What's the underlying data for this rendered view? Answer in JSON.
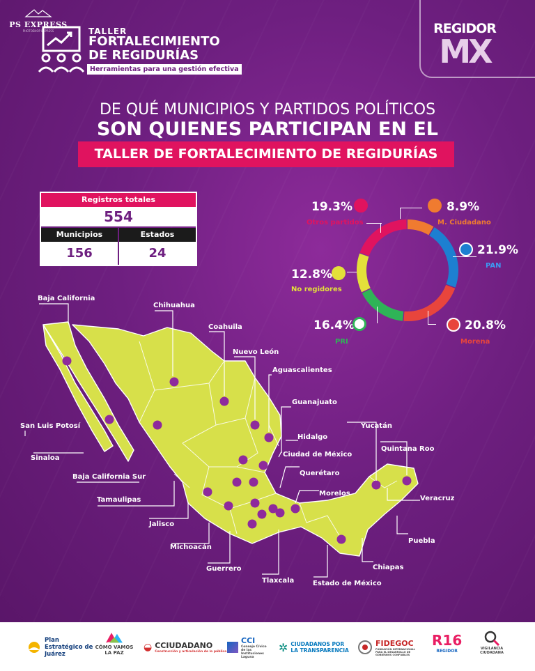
{
  "watermark": {
    "text": "PS EXPRESS",
    "sub": "PHOTOSHOP EXPRESS"
  },
  "header": {
    "kicker": "TALLER",
    "title_line1": "FORTALECIMIENTO",
    "title_line2": "DE REGIDURÍAS",
    "tagline": "Herramientas para una gestión efectiva"
  },
  "brand": {
    "top": "REGIDOR",
    "bottom": "MX"
  },
  "question": {
    "line1": "DE QUÉ MUNICIPIOS Y PARTIDOS POLÍTICOS",
    "line2": "SON QUIENES PARTICIPAN EN EL",
    "line3": "TALLER DE FORTALECIMIENTO DE REGIDURÍAS"
  },
  "stats": {
    "total_label": "Registros totales",
    "total_value": "554",
    "municipios_label": "Municipios",
    "municipios_value": "156",
    "estados_label": "Estados",
    "estados_value": "24"
  },
  "parties": [
    {
      "pct": "19.3%",
      "label": "Otros partidos",
      "value": 19.3,
      "color": "#e0135f"
    },
    {
      "pct": "8.9%",
      "label": "M. Ciudadano",
      "value": 8.9,
      "color": "#f07b30"
    },
    {
      "pct": "21.9%",
      "label": "PAN",
      "value": 21.9,
      "color": "#1d7fd1"
    },
    {
      "pct": "20.8%",
      "label": "Morena",
      "value": 20.8,
      "color": "#e8453c"
    },
    {
      "pct": "16.4%",
      "label": "PRI",
      "value": 16.4,
      "color": "#2fb457"
    },
    {
      "pct": "12.8%",
      "label": "No regidores",
      "value": 12.8,
      "color": "#e3e03a"
    }
  ],
  "party_icons": {
    "mc": "eagle-icon",
    "pan": "pan-logo-icon",
    "morena": "morena-logo-icon",
    "pri": "pri-logo-icon"
  },
  "states": {
    "baja_california": "Baja California",
    "chihuahua": "Chihuahua",
    "coahuila": "Coahuila",
    "nuevo_leon": "Nuevo León",
    "aguascalientes": "Aguascalientes",
    "guanajuato": "Guanajuato",
    "san_luis_potosi": "San Luis Potosí",
    "yucatan": "Yucatán",
    "hidalgo": "Hidalgo",
    "quintana_roo": "Quintana Roo",
    "sinaloa": "Sinaloa",
    "ciudad_de_mexico": "Ciudad de México",
    "baja_california_sur": "Baja California Sur",
    "queretaro": "Querétaro",
    "tamaulipas": "Tamaulipas",
    "morelos": "Morelos",
    "veracruz": "Veracruz",
    "jalisco": "Jalisco",
    "puebla": "Puebla",
    "michoacan": "Michoacán",
    "guerrero": "Guerrero",
    "chiapas": "Chiapas",
    "tlaxcala": "Tlaxcala",
    "estado_de_mexico": "Estado de México"
  },
  "footer": {
    "plan_juarez": "Plan Estratégico de Juárez",
    "como_vamos": "CÓMO VAMOS LA PAZ",
    "cciudadano": "CCIUDADANO",
    "cciudadano_sub": "Construcción y articulación de lo público",
    "cci": "CCI",
    "cci_sub": "Consejo Cívico de las Instituciones Laguna",
    "transparencia": "CIUDADANOS POR LA TRANSPARENCIA",
    "fidegoc": "FIDEGOC",
    "fidegoc_sub": "FUNDACIÓN INTERNACIONAL PARA EL DESARROLLO DE GOBIERNOS CONFIABLES",
    "r16": "R16",
    "r16_sub": "REGIDOR",
    "vigilancia": "VIGILANCIA CIUDADANA"
  },
  "colors": {
    "bg": "#6e1f80",
    "accent": "#e0135f",
    "map": "#d7e04a",
    "dot": "#8e2a9c"
  }
}
